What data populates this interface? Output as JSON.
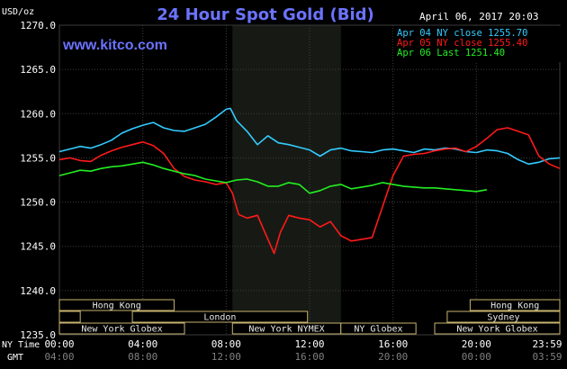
{
  "chart_data": {
    "type": "line",
    "title": "24 Hour Spot Gold (Bid)",
    "website": "www.kitco.com",
    "date_label": "April 06, 2017 20:03",
    "ylabel": "USD/oz",
    "ylim": [
      1235,
      1270
    ],
    "yticks": [
      "1270.0",
      "1265.0",
      "1260.0",
      "1255.0",
      "1250.0",
      "1245.0",
      "1240.0",
      "1235.0"
    ],
    "ytick_values": [
      1270,
      1265,
      1260,
      1255,
      1250,
      1245,
      1240,
      1235
    ],
    "x_row_labels": [
      "NY Time",
      "GMT"
    ],
    "x_ny_times": [
      "00:00",
      "04:00",
      "08:00",
      "12:00",
      "16:00",
      "20:00",
      "23:59"
    ],
    "x_gmt_times": [
      "04:00",
      "08:00",
      "12:00",
      "16:00",
      "20:00",
      "00:00",
      "03:59"
    ],
    "x_hours": [
      0,
      4,
      8,
      12,
      16,
      20,
      24
    ],
    "xlim": [
      0,
      24
    ],
    "grid": true,
    "legend_placement": "top-right",
    "shaded_region_hours": [
      8.3,
      13.5
    ],
    "legend": [
      {
        "label": "Apr 04 NY close 1255.70",
        "color": "#33ccff"
      },
      {
        "label": "Apr 05 NY close 1255.40",
        "color": "#ff1a1a"
      },
      {
        "label": "Apr 06 Last 1251.40",
        "color": "#22ee22"
      }
    ],
    "series": [
      {
        "name": "Apr 04",
        "color": "#33ccff",
        "x": [
          0,
          0.5,
          1,
          1.5,
          2,
          2.5,
          3,
          3.5,
          4,
          4.5,
          5,
          5.5,
          6,
          6.5,
          7,
          7.5,
          8,
          8.2,
          8.5,
          9,
          9.5,
          10,
          10.5,
          11,
          11.5,
          12,
          12.5,
          13,
          13.5,
          14,
          14.5,
          15,
          15.5,
          16,
          16.5,
          17,
          17.5,
          18,
          18.5,
          19,
          19.5,
          20,
          20.5,
          21,
          21.5,
          22,
          22.5,
          23,
          23.5,
          24
        ],
        "values": [
          1255.7,
          1256.0,
          1256.3,
          1256.1,
          1256.5,
          1257.0,
          1257.8,
          1258.3,
          1258.7,
          1259.0,
          1258.4,
          1258.1,
          1258.0,
          1258.4,
          1258.8,
          1259.6,
          1260.5,
          1260.6,
          1259.2,
          1258.0,
          1256.5,
          1257.5,
          1256.7,
          1256.5,
          1256.2,
          1255.9,
          1255.2,
          1255.9,
          1256.1,
          1255.8,
          1255.7,
          1255.6,
          1255.9,
          1256.0,
          1255.8,
          1255.6,
          1256.0,
          1255.9,
          1256.1,
          1256.0,
          1255.7,
          1255.6,
          1255.9,
          1255.8,
          1255.5,
          1254.8,
          1254.3,
          1254.5,
          1254.9,
          1255.0
        ]
      },
      {
        "name": "Apr 05",
        "color": "#ff1a1a",
        "x": [
          0,
          0.5,
          1,
          1.5,
          2,
          2.5,
          3,
          3.5,
          4,
          4.5,
          5,
          5.5,
          6,
          6.5,
          7,
          7.5,
          8,
          8.3,
          8.6,
          9,
          9.5,
          10,
          10.3,
          10.6,
          11,
          11.5,
          12,
          12.5,
          13,
          13.5,
          14,
          14.5,
          15,
          15.5,
          16,
          16.5,
          17,
          17.5,
          18,
          18.5,
          19,
          19.5,
          20,
          20.5,
          21,
          21.5,
          22,
          22.5,
          23,
          23.5,
          24
        ],
        "values": [
          1254.8,
          1255.0,
          1254.7,
          1254.6,
          1255.3,
          1255.8,
          1256.2,
          1256.5,
          1256.8,
          1256.4,
          1255.5,
          1253.8,
          1252.9,
          1252.5,
          1252.3,
          1252.0,
          1252.2,
          1251.0,
          1248.6,
          1248.2,
          1248.5,
          1245.8,
          1244.2,
          1246.6,
          1248.5,
          1248.2,
          1248.0,
          1247.2,
          1247.8,
          1246.2,
          1245.6,
          1245.8,
          1246.0,
          1249.5,
          1253.0,
          1255.2,
          1255.4,
          1255.5,
          1255.8,
          1256.0,
          1256.1,
          1255.7,
          1256.3,
          1257.2,
          1258.2,
          1258.4,
          1258.0,
          1257.6,
          1255.2,
          1254.3,
          1253.8
        ]
      },
      {
        "name": "Apr 06",
        "color": "#22ee22",
        "x": [
          0,
          0.5,
          1,
          1.5,
          2,
          2.5,
          3,
          3.5,
          4,
          4.5,
          5,
          5.5,
          6,
          6.5,
          7,
          7.5,
          8,
          8.5,
          9,
          9.5,
          10,
          10.5,
          11,
          11.5,
          12,
          12.5,
          13,
          13.5,
          14,
          14.5,
          15,
          15.5,
          16,
          16.5,
          17,
          17.5,
          18,
          18.5,
          19,
          19.5,
          20,
          20.5
        ],
        "values": [
          1253.0,
          1253.3,
          1253.6,
          1253.5,
          1253.8,
          1254.0,
          1254.1,
          1254.3,
          1254.5,
          1254.2,
          1253.8,
          1253.5,
          1253.2,
          1253.0,
          1252.6,
          1252.4,
          1252.2,
          1252.5,
          1252.6,
          1252.3,
          1251.8,
          1251.8,
          1252.2,
          1252.0,
          1251.0,
          1251.3,
          1251.8,
          1252.0,
          1251.5,
          1251.7,
          1251.9,
          1252.2,
          1252.0,
          1251.8,
          1251.7,
          1251.6,
          1251.6,
          1251.5,
          1251.4,
          1251.3,
          1251.2,
          1251.4
        ]
      }
    ],
    "sessions": [
      {
        "label": "Hong Kong",
        "start": 0,
        "end": 5.5,
        "row": 0
      },
      {
        "label": "Hong Kong",
        "start": 19.7,
        "end": 24,
        "row": 0
      },
      {
        "label": "",
        "start": 0,
        "end": 1.0,
        "row": 1
      },
      {
        "label": "London",
        "start": 3.5,
        "end": 11.9,
        "row": 1
      },
      {
        "label": "Sydney",
        "start": 18.6,
        "end": 24,
        "row": 1
      },
      {
        "label": "New York Globex",
        "start": 0,
        "end": 6.0,
        "row": 2
      },
      {
        "label": "New York NYMEX",
        "start": 8.3,
        "end": 13.5,
        "row": 2
      },
      {
        "label": "NY Globex",
        "start": 13.5,
        "end": 17.1,
        "row": 2
      },
      {
        "label": "New York Globex",
        "start": 18.0,
        "end": 24,
        "row": 2
      }
    ]
  }
}
